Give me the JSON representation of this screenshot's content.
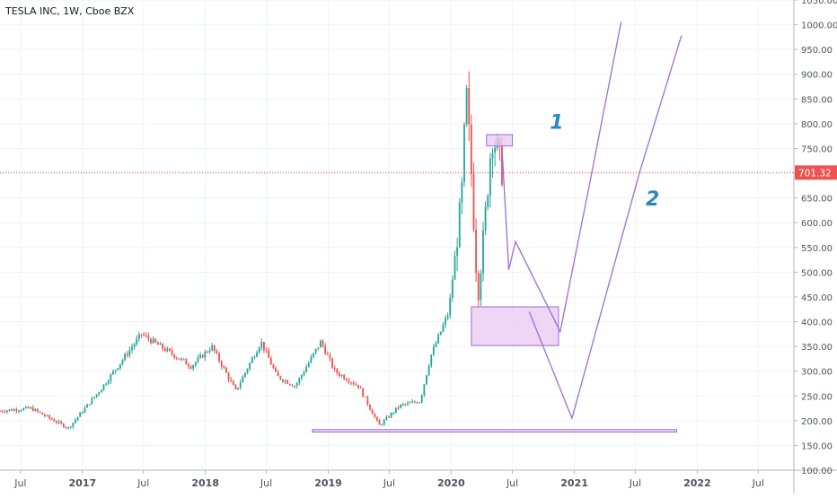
{
  "chart_data": {
    "type": "candlestick",
    "title": "TESLA INC, 1W, Cboe BZX",
    "y_axis": {
      "min": 100,
      "max": 1050,
      "ticks": [
        "100.00",
        "150.00",
        "200.00",
        "250.00",
        "300.00",
        "350.00",
        "400.00",
        "450.00",
        "500.00",
        "550.00",
        "600.00",
        "650.00",
        "700.00",
        "750.00",
        "800.00",
        "850.00",
        "900.00",
        "950.00",
        "1000.00",
        "1050.00"
      ]
    },
    "x_axis": {
      "start": "2016-05-01",
      "end": "2022-10-15",
      "ticks": [
        {
          "label": "Jul",
          "date": "2016-07-01"
        },
        {
          "label": "2017",
          "date": "2017-01-01"
        },
        {
          "label": "Jul",
          "date": "2017-07-01"
        },
        {
          "label": "2018",
          "date": "2018-01-01"
        },
        {
          "label": "Jul",
          "date": "2018-07-01"
        },
        {
          "label": "2019",
          "date": "2019-01-01"
        },
        {
          "label": "Jul",
          "date": "2019-07-01"
        },
        {
          "label": "2020",
          "date": "2020-01-01"
        },
        {
          "label": "Jul",
          "date": "2020-07-01"
        },
        {
          "label": "2021",
          "date": "2021-01-01"
        },
        {
          "label": "Jul",
          "date": "2021-07-01"
        },
        {
          "label": "2022",
          "date": "2022-01-01"
        },
        {
          "label": "Jul",
          "date": "2022-07-01"
        }
      ]
    },
    "last_price": {
      "value": 701.32,
      "label": "701.32",
      "color": "#ef5350"
    },
    "colors": {
      "up": "#26a69a",
      "down": "#ef5350",
      "drawing": "#9c6fd6",
      "zone_fill": "#e8c8f0",
      "grid": "#f0f3fa",
      "axis_text": "#50535e"
    },
    "price_keypoints": [
      {
        "date": "2016-05-01",
        "close": 220
      },
      {
        "date": "2016-08-01",
        "close": 225
      },
      {
        "date": "2016-11-20",
        "close": 185
      },
      {
        "date": "2017-02-20",
        "close": 260
      },
      {
        "date": "2017-06-25",
        "close": 375
      },
      {
        "date": "2017-08-20",
        "close": 350
      },
      {
        "date": "2017-11-20",
        "close": 310
      },
      {
        "date": "2018-01-20",
        "close": 350
      },
      {
        "date": "2018-04-01",
        "close": 260
      },
      {
        "date": "2018-06-15",
        "close": 360
      },
      {
        "date": "2018-08-01",
        "close": 290
      },
      {
        "date": "2018-09-25",
        "close": 270
      },
      {
        "date": "2018-12-10",
        "close": 360
      },
      {
        "date": "2019-01-20",
        "close": 300
      },
      {
        "date": "2019-04-01",
        "close": 270
      },
      {
        "date": "2019-06-01",
        "close": 190
      },
      {
        "date": "2019-08-01",
        "close": 230
      },
      {
        "date": "2019-10-01",
        "close": 240
      },
      {
        "date": "2019-11-01",
        "close": 330
      },
      {
        "date": "2019-12-25",
        "close": 420
      },
      {
        "date": "2020-02-01",
        "close": 650
      },
      {
        "date": "2020-02-15",
        "close": 860
      },
      {
        "date": "2020-03-01",
        "close": 700
      },
      {
        "date": "2020-03-20",
        "close": 450
      },
      {
        "date": "2020-04-10",
        "close": 600
      },
      {
        "date": "2020-05-01",
        "close": 780
      },
      {
        "date": "2020-05-20",
        "close": 740
      },
      {
        "date": "2020-06-01",
        "close": 701
      }
    ],
    "drawings": {
      "supply_zone": {
        "date_from": "2020-04-15",
        "date_to": "2020-07-01",
        "price_from": 755,
        "price_to": 778
      },
      "demand_zone": {
        "date_from": "2020-03-01",
        "date_to": "2020-11-15",
        "price_from": 352,
        "price_to": 430
      },
      "base_zone": {
        "date_from": "2018-11-15",
        "date_to": "2021-11-01",
        "price_from": 177,
        "price_to": 182
      },
      "path_1": [
        {
          "date": "2020-06-01",
          "price": 740
        },
        {
          "date": "2020-06-20",
          "price": 505
        },
        {
          "date": "2020-07-10",
          "price": 562
        },
        {
          "date": "2020-11-20",
          "price": 380
        },
        {
          "date": "2021-02-20",
          "price": 695
        },
        {
          "date": "2021-05-20",
          "price": 1006
        }
      ],
      "path_2": [
        {
          "date": "2020-08-20",
          "price": 420
        },
        {
          "date": "2020-12-25",
          "price": 205
        },
        {
          "date": "2021-07-15",
          "price": 705
        },
        {
          "date": "2021-11-15",
          "price": 978
        }
      ],
      "labels": [
        {
          "text": "1",
          "date": "2020-10-20",
          "price": 790
        },
        {
          "text": "2",
          "date": "2021-08-01",
          "price": 635
        }
      ]
    }
  }
}
